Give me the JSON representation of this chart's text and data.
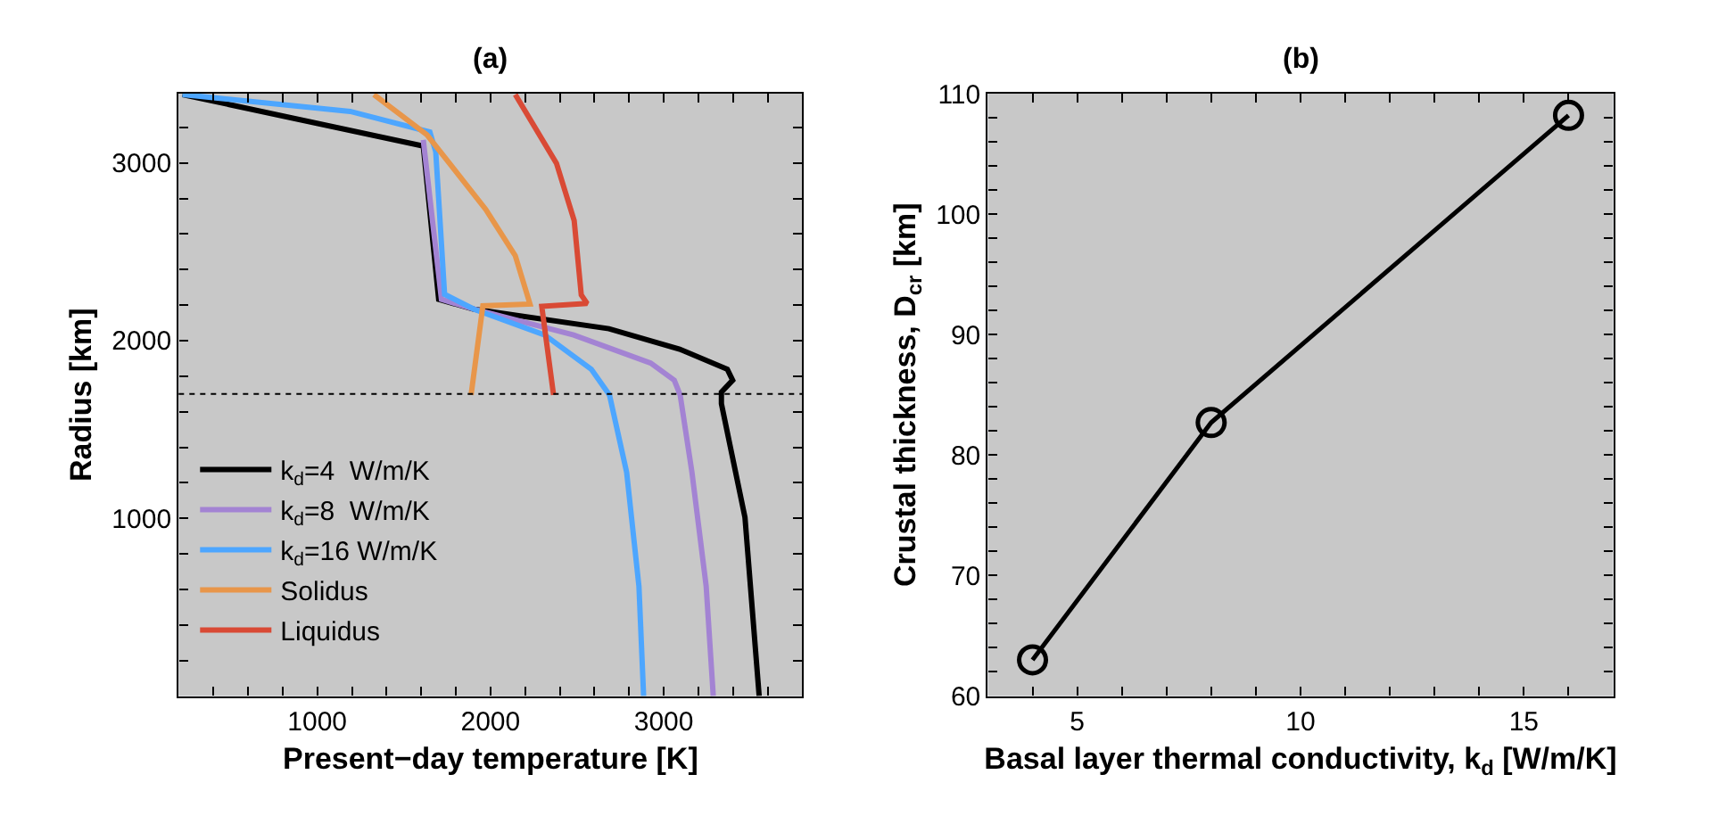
{
  "chart_data": [
    {
      "type": "line",
      "title": "(a)",
      "xlabel": "Present−day temperature [K]",
      "ylabel": "Radius [km]",
      "xlim": [
        200,
        3800
      ],
      "ylim": [
        0,
        3390
      ],
      "xticks": [
        {
          "value": 400,
          "label": null
        },
        {
          "value": 600,
          "label": null
        },
        {
          "value": 800,
          "label": null
        },
        1000,
        {
          "value": 1200,
          "label": null
        },
        {
          "value": 1400,
          "label": null
        },
        {
          "value": 1600,
          "label": null
        },
        {
          "value": 1800,
          "label": null
        },
        2000,
        {
          "value": 2200,
          "label": null
        },
        {
          "value": 2400,
          "label": null
        },
        {
          "value": 2600,
          "label": null
        },
        {
          "value": 2800,
          "label": null
        },
        3000,
        {
          "value": 3200,
          "label": null
        },
        {
          "value": 3400,
          "label": null
        },
        {
          "value": 3600,
          "label": null
        }
      ],
      "yticks": [
        {
          "value": 200,
          "label": null
        },
        {
          "value": 400,
          "label": null
        },
        {
          "value": 600,
          "label": null
        },
        {
          "value": 800,
          "label": null
        },
        1000,
        {
          "value": 1200,
          "label": null
        },
        {
          "value": 1400,
          "label": null
        },
        {
          "value": 1600,
          "label": null
        },
        {
          "value": 1800,
          "label": null
        },
        2000,
        {
          "value": 2200,
          "label": null
        },
        {
          "value": 2400,
          "label": null
        },
        {
          "value": 2600,
          "label": null
        },
        {
          "value": 2800,
          "label": null
        },
        3000,
        {
          "value": 3200,
          "label": null
        }
      ],
      "grid": false,
      "legend": "bottom left",
      "marker": "none",
      "line_style": "solid",
      "ref_lines": [
        {
          "axis": "y",
          "value": 1700,
          "color": "#000000",
          "line_style": "dotted"
        }
      ],
      "series": [
        {
          "name": "k$_{d}$=4  W/m/K",
          "color": "#000000",
          "x": [
            222,
            1612,
            1701,
            1905,
            2684,
            3092,
            3367,
            3398,
            3333,
            3333,
            3469,
            3551
          ],
          "values": [
            3385,
            3095,
            2232,
            2177,
            2067,
            1952,
            1839,
            1777,
            1710,
            1645,
            1005,
            0
          ]
        },
        {
          "name": "k$_{d}$=8  W/m/K",
          "color": "#a383d3",
          "x": [
            null,
            1612,
            1717,
            1905,
            2480,
            2925,
            3061,
            3095,
            3163,
            3245,
            3286
          ],
          "values": [
            null,
            3130,
            2232,
            2177,
            2032,
            1874,
            1777,
            1694,
            1259,
            618,
            0
          ]
        },
        {
          "name": "k$_{d}$=16 W/m/K",
          "color": "#4da6ff",
          "x": [
            222,
            1190,
            1650,
            1684,
            1735,
            1905,
            2313,
            2582,
            2687,
            2786,
            2857,
            2884
          ],
          "values": [
            3385,
            3290,
            3174,
            3063,
            2261,
            2177,
            2032,
            1839,
            1694,
            1259,
            618,
            0
          ]
        },
        {
          "name": "Solidus",
          "color": "#e8964a",
          "x": [
            1327,
            1633,
            1973,
            2143,
            2228,
            1956,
            1888
          ],
          "values": [
            3385,
            3159,
            2738,
            2478,
            2206,
            2196,
            1694
          ]
        },
        {
          "name": "Liquidus",
          "color": "#d94a35",
          "x": [
            2143,
            2381,
            2483,
            2524,
            2558,
            2296,
            2364
          ],
          "values": [
            3385,
            2998,
            2676,
            2257,
            2209,
            2193,
            1694
          ]
        }
      ]
    },
    {
      "type": "line",
      "title": "(b)",
      "xlabel": "Basal layer thermal conductivity, k$_{d}$ [W/m/K]",
      "ylabel": "Crustal thickness, D$_{cr}$ [km]",
      "xlim": [
        3,
        17
      ],
      "ylim": [
        60,
        110
      ],
      "xticks": [
        {
          "value": 4,
          "label": null
        },
        5,
        {
          "value": 6,
          "label": null
        },
        {
          "value": 7,
          "label": null
        },
        {
          "value": 8,
          "label": null
        },
        {
          "value": 9,
          "label": null
        },
        10,
        {
          "value": 11,
          "label": null
        },
        {
          "value": 12,
          "label": null
        },
        {
          "value": 13,
          "label": null
        },
        {
          "value": 14,
          "label": null
        },
        15,
        {
          "value": 16,
          "label": null
        }
      ],
      "yticks": [
        60,
        {
          "value": 62,
          "label": null
        },
        {
          "value": 64,
          "label": null
        },
        {
          "value": 66,
          "label": null
        },
        {
          "value": 68,
          "label": null
        },
        70,
        {
          "value": 72,
          "label": null
        },
        {
          "value": 74,
          "label": null
        },
        {
          "value": 76,
          "label": null
        },
        {
          "value": 78,
          "label": null
        },
        80,
        {
          "value": 82,
          "label": null
        },
        {
          "value": 84,
          "label": null
        },
        {
          "value": 86,
          "label": null
        },
        {
          "value": 88,
          "label": null
        },
        90,
        {
          "value": 92,
          "label": null
        },
        {
          "value": 94,
          "label": null
        },
        {
          "value": 96,
          "label": null
        },
        {
          "value": 98,
          "label": null
        },
        100,
        {
          "value": 102,
          "label": null
        },
        {
          "value": 104,
          "label": null
        },
        {
          "value": 106,
          "label": null
        },
        {
          "value": 108,
          "label": null
        },
        110
      ],
      "grid": false,
      "marker": "circle",
      "line_style": "solid",
      "series": [
        {
          "color": "#000000",
          "x": [
            4,
            8,
            16
          ],
          "values": [
            63.0,
            82.7,
            108.2
          ]
        }
      ]
    }
  ]
}
